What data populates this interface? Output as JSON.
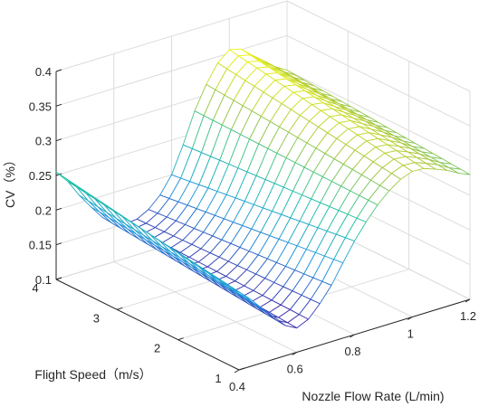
{
  "chart_data": {
    "type": "surface",
    "style": "mesh",
    "colormap": "parula",
    "xlabel": "Nozzle Flow Rate (L/min)",
    "ylabel": "Flight Speed（m/s）",
    "zlabel": "CV（%）",
    "xlim": [
      0.4,
      1.2
    ],
    "ylim": [
      1,
      4
    ],
    "zlim": [
      0.1,
      0.4
    ],
    "x_ticks": [
      "0.4",
      "0.6",
      "0.8",
      "1",
      "1.2"
    ],
    "y_ticks": [
      "1",
      "2",
      "3",
      "4"
    ],
    "z_ticks": [
      "0.1",
      "0.15",
      "0.2",
      "0.25",
      "0.3",
      "0.35",
      "0.4"
    ],
    "grid": true,
    "mesh_resolution": [
      20,
      20
    ],
    "surface_model": {
      "x_values": [
        0.4,
        0.5,
        0.6,
        0.7,
        0.8,
        0.9,
        1.0,
        1.1,
        1.2
      ],
      "cv_at_speed_1": [
        0.21,
        0.17,
        0.135,
        0.17,
        0.235,
        0.285,
        0.31,
        0.3,
        0.28
      ],
      "cv_at_speed_4": [
        0.255,
        0.2,
        0.155,
        0.155,
        0.2,
        0.3,
        0.355,
        0.33,
        0.3
      ]
    },
    "colors": {
      "low": "#3e26a8",
      "mid_low": "#1f97e0",
      "mid": "#20c4a2",
      "mid_high": "#a9c73c",
      "high": "#f9fb0e",
      "grid": "#dcdcdc",
      "axis": "#262626"
    }
  }
}
